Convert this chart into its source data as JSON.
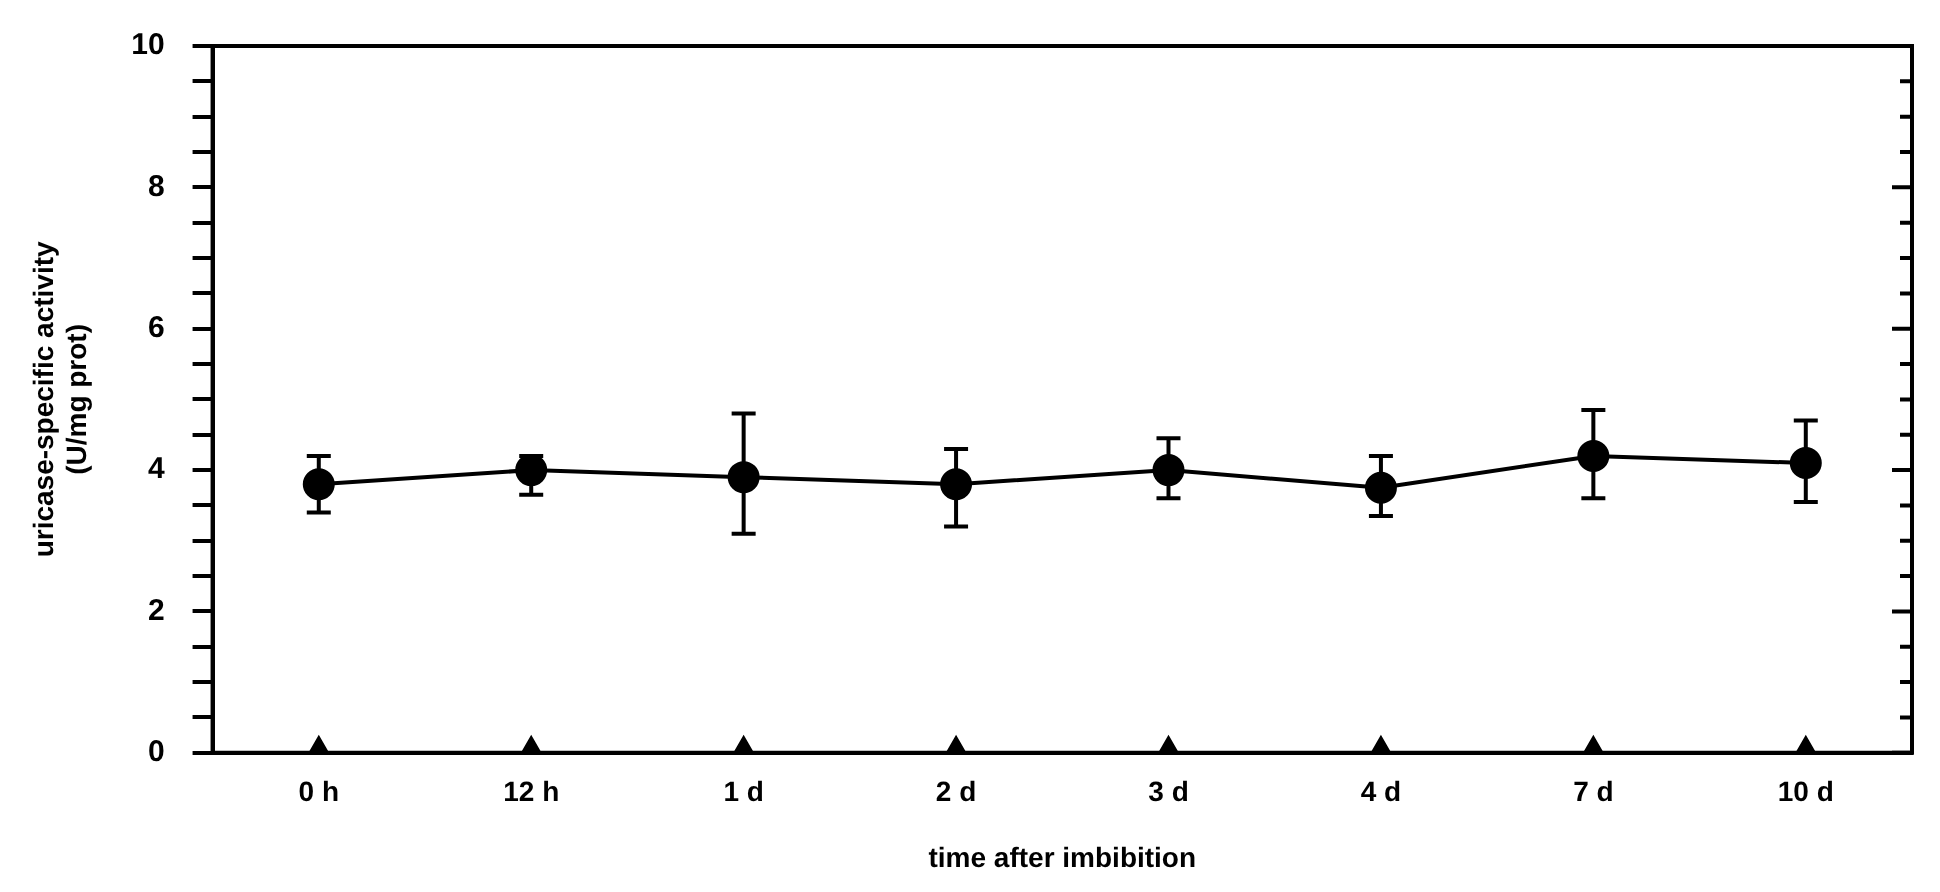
{
  "chart_data": {
    "type": "line",
    "xlabel": "time after imbibition",
    "ylabel": "uricase-specific activity\n(U/mg prot)",
    "categories": [
      "0 h",
      "12 h",
      "1 d",
      "2 d",
      "3 d",
      "4 d",
      "7 d",
      "10 d"
    ],
    "series": [
      {
        "color": "#000000",
        "marker": "circle",
        "line_style": "solid",
        "values": [
          3.8,
          4.0,
          3.9,
          3.8,
          4.0,
          3.75,
          4.2,
          4.1
        ],
        "errors": [
          [
            3.4,
            4.2
          ],
          [
            3.65,
            4.2
          ],
          [
            3.1,
            4.8
          ],
          [
            3.2,
            4.3
          ],
          [
            3.6,
            4.45
          ],
          [
            3.35,
            4.2
          ],
          [
            3.6,
            4.85
          ],
          [
            3.55,
            4.7
          ]
        ]
      },
      {
        "type": "scatter",
        "color": "#000000",
        "marker": "triangle",
        "values": [
          0,
          0,
          0,
          0,
          0,
          0,
          0,
          0
        ]
      }
    ],
    "ylim": [
      0,
      10
    ],
    "yticks": [
      0,
      {
        "value": 0.5,
        "label": null
      },
      {
        "value": 1,
        "label": null
      },
      {
        "value": 1.5,
        "label": null
      },
      2,
      {
        "value": 2.5,
        "label": null
      },
      {
        "value": 3,
        "label": null
      },
      {
        "value": 3.5,
        "label": null
      },
      4,
      {
        "value": 4.5,
        "label": null
      },
      {
        "value": 5,
        "label": null
      },
      {
        "value": 5.5,
        "label": null
      },
      6,
      {
        "value": 6.5,
        "label": null
      },
      {
        "value": 7,
        "label": null
      },
      {
        "value": 7.5,
        "label": null
      },
      8,
      {
        "value": 8.5,
        "label": null
      },
      {
        "value": 9,
        "label": null
      },
      {
        "value": 9.5,
        "label": null
      },
      10
    ],
    "grid": false,
    "legend": false
  }
}
